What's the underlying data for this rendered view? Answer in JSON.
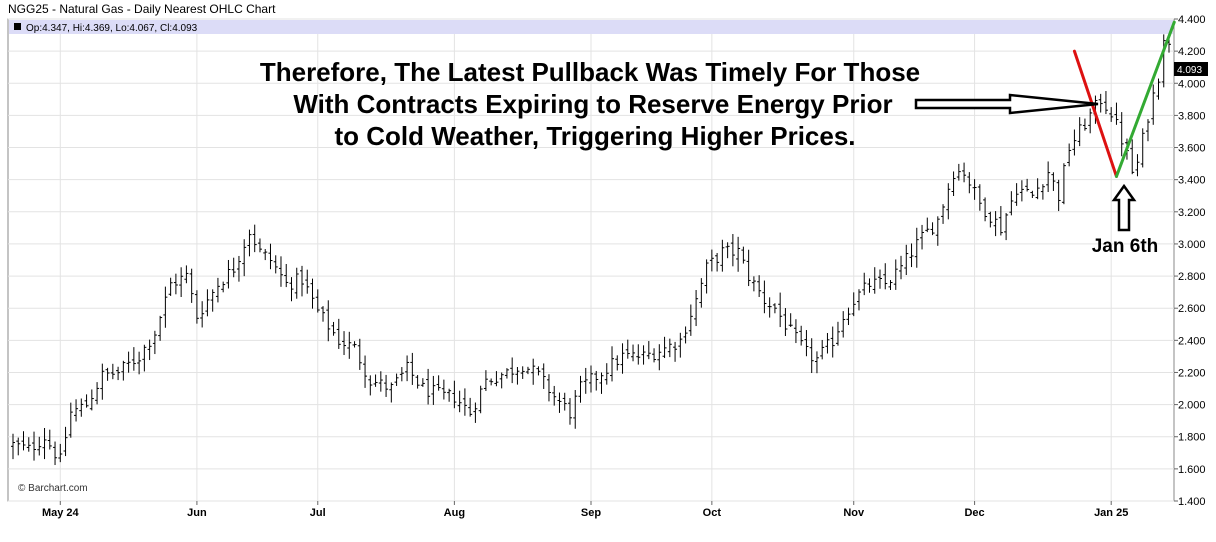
{
  "chart_data": {
    "type": "ohlc",
    "title": "NGG25 - Natural Gas - Daily Nearest OHLC Chart",
    "ohlc_readout": "Op:4.347, Hi:4.369, Lo:4.067, Cl:4.093",
    "last_price_label": "4.093",
    "copyright": "© Barchart.com",
    "ylim": [
      1.4,
      4.4
    ],
    "y_ticks": [
      "4.400",
      "4.200",
      "4.000",
      "3.800",
      "3.600",
      "3.400",
      "3.200",
      "3.000",
      "2.800",
      "2.600",
      "2.400",
      "2.200",
      "2.000",
      "1.800",
      "1.600",
      "1.400"
    ],
    "y_tick_values": [
      4.4,
      4.2,
      4.0,
      3.8,
      3.6,
      3.4,
      3.2,
      3.0,
      2.8,
      2.6,
      2.4,
      2.2,
      2.0,
      1.8,
      1.6,
      1.4
    ],
    "x_ticks": [
      "May 24",
      "Jun",
      "Jul",
      "Aug",
      "Sep",
      "Oct",
      "Nov",
      "Dec",
      "Jan 25"
    ],
    "x_tick_bar_index": [
      9,
      35,
      58,
      84,
      110,
      133,
      160,
      183,
      209
    ],
    "n_bars": 221,
    "anchors": [
      [
        0,
        1.75
      ],
      [
        3,
        1.72
      ],
      [
        6,
        1.8
      ],
      [
        9,
        1.65
      ],
      [
        11,
        1.95
      ],
      [
        14,
        2.0
      ],
      [
        17,
        2.18
      ],
      [
        20,
        2.2
      ],
      [
        24,
        2.3
      ],
      [
        27,
        2.45
      ],
      [
        30,
        2.75
      ],
      [
        33,
        2.8
      ],
      [
        35,
        2.55
      ],
      [
        39,
        2.75
      ],
      [
        42,
        2.85
      ],
      [
        45,
        3.08
      ],
      [
        47,
        2.95
      ],
      [
        49,
        2.9
      ],
      [
        52,
        2.75
      ],
      [
        55,
        2.78
      ],
      [
        58,
        2.58
      ],
      [
        62,
        2.4
      ],
      [
        65,
        2.35
      ],
      [
        68,
        2.15
      ],
      [
        72,
        2.1
      ],
      [
        75,
        2.22
      ],
      [
        78,
        2.1
      ],
      [
        82,
        2.05
      ],
      [
        84,
        2.05
      ],
      [
        87,
        1.95
      ],
      [
        90,
        2.15
      ],
      [
        94,
        2.2
      ],
      [
        97,
        2.25
      ],
      [
        100,
        2.18
      ],
      [
        103,
        2.05
      ],
      [
        106,
        1.95
      ],
      [
        108,
        2.1
      ],
      [
        112,
        2.2
      ],
      [
        116,
        2.3
      ],
      [
        120,
        2.3
      ],
      [
        124,
        2.35
      ],
      [
        127,
        2.4
      ],
      [
        130,
        2.65
      ],
      [
        132,
        2.85
      ],
      [
        135,
        2.95
      ],
      [
        138,
        2.95
      ],
      [
        140,
        2.8
      ],
      [
        143,
        2.65
      ],
      [
        145,
        2.6
      ],
      [
        148,
        2.45
      ],
      [
        151,
        2.32
      ],
      [
        153,
        2.28
      ],
      [
        156,
        2.4
      ],
      [
        158,
        2.55
      ],
      [
        160,
        2.65
      ],
      [
        163,
        2.75
      ],
      [
        166,
        2.75
      ],
      [
        169,
        2.85
      ],
      [
        172,
        3.0
      ],
      [
        176,
        3.15
      ],
      [
        179,
        3.45
      ],
      [
        181,
        3.45
      ],
      [
        184,
        3.25
      ],
      [
        188,
        3.1
      ],
      [
        191,
        3.35
      ],
      [
        194,
        3.3
      ],
      [
        197,
        3.45
      ],
      [
        199,
        3.3
      ],
      [
        201,
        3.6
      ],
      [
        204,
        3.75
      ],
      [
        206,
        3.85
      ],
      [
        207,
        3.9
      ],
      [
        209,
        3.82
      ],
      [
        211,
        3.65
      ],
      [
        213,
        3.45
      ],
      [
        214,
        3.5
      ],
      [
        216,
        3.8
      ],
      [
        218,
        4.05
      ],
      [
        219,
        4.3
      ],
      [
        220,
        4.22
      ]
    ],
    "lines": [
      {
        "color": "#dd1111",
        "from": [
          202,
          4.2
        ],
        "to": [
          210,
          3.42
        ]
      },
      {
        "color": "#33aa33",
        "from": [
          210,
          3.42
        ],
        "to": [
          221,
          4.38
        ]
      }
    ]
  },
  "annotation": {
    "line1": "Therefore, The Latest Pullback Was Timely For Those",
    "line2": "With Contracts Expiring to Reserve Energy Prior",
    "line3": "to Cold Weather, Triggering Higher Prices.",
    "label": "Jan 6th"
  }
}
